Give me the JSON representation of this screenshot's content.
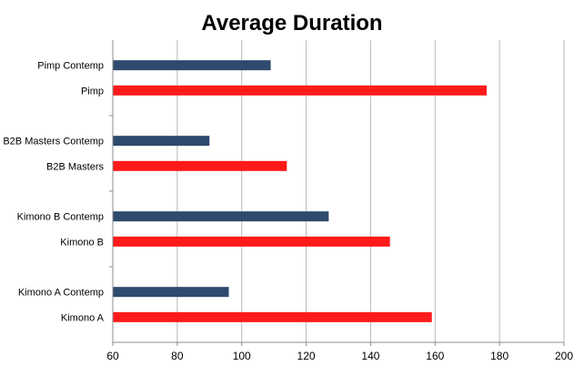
{
  "chart_data": {
    "type": "bar",
    "orientation": "horizontal",
    "title": "Average Duration",
    "xlabel": "",
    "ylabel": "",
    "xlim": [
      60,
      200
    ],
    "x_ticks": [
      60,
      80,
      100,
      120,
      140,
      160,
      180,
      200
    ],
    "grid": "vertical",
    "legend": "none",
    "bars": [
      {
        "label": "Pimp Contemp",
        "value": 109,
        "series": "contemp"
      },
      {
        "label": "Pimp",
        "value": 176,
        "series": "original"
      },
      {
        "label": "B2B Masters Contemp",
        "value": 90,
        "series": "contemp"
      },
      {
        "label": "B2B Masters",
        "value": 114,
        "series": "original"
      },
      {
        "label": "Kimono B Contemp",
        "value": 127,
        "series": "contemp"
      },
      {
        "label": "Kimono B",
        "value": 146,
        "series": "original"
      },
      {
        "label": "Kimono A Contemp",
        "value": 96,
        "series": "contemp"
      },
      {
        "label": "Kimono A",
        "value": 159,
        "series": "original"
      }
    ],
    "colors": {
      "contemp": "#2e4a6e",
      "original": "#ff1a1a",
      "gridline": "#b8b8b8",
      "axis": "#8c8c8c"
    }
  }
}
